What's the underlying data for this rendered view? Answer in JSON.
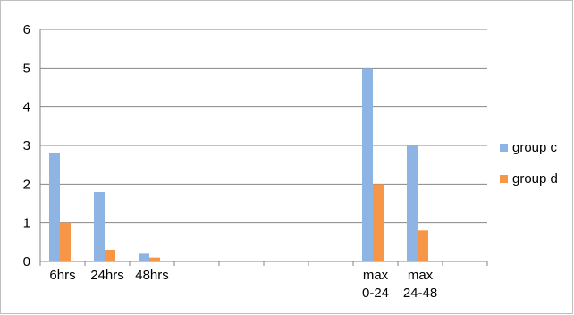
{
  "chart_data": {
    "type": "bar",
    "categories": [
      [
        "6hrs"
      ],
      [
        "24hrs"
      ],
      [
        "48hrs"
      ],
      [
        ""
      ],
      [
        ""
      ],
      [
        ""
      ],
      [
        ""
      ],
      [
        "max",
        "0-24"
      ],
      [
        "max",
        "24-48"
      ],
      [
        ""
      ]
    ],
    "series": [
      {
        "name": "group c",
        "color": "#8eb4e3",
        "values": [
          2.8,
          1.8,
          0.2,
          null,
          null,
          null,
          null,
          5,
          3,
          null
        ]
      },
      {
        "name": "group d",
        "color": "#f79646",
        "values": [
          1.0,
          0.3,
          0.1,
          null,
          null,
          null,
          null,
          2,
          0.8,
          null
        ]
      }
    ],
    "ylim": [
      0,
      6
    ],
    "yticks": [
      0,
      1,
      2,
      3,
      4,
      5,
      6
    ],
    "grid": true,
    "legend_position": "right",
    "title": "",
    "xlabel": "",
    "ylabel": ""
  }
}
